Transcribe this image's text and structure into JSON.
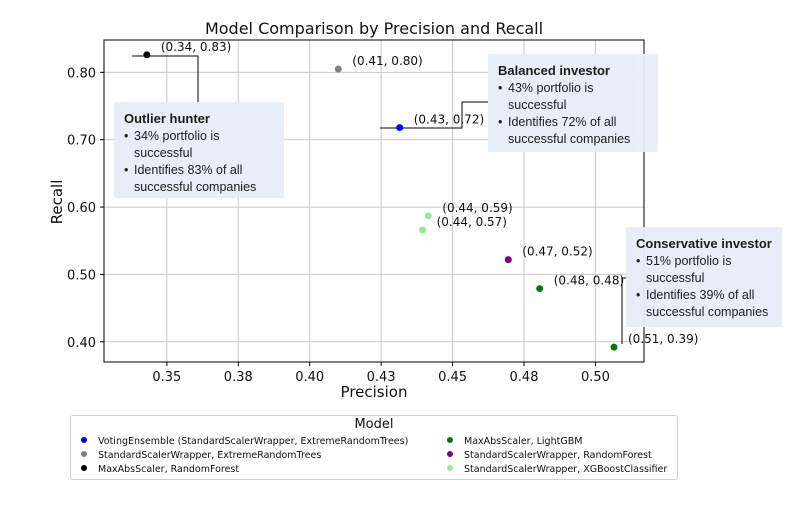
{
  "chart_data": {
    "type": "scatter",
    "title": "Model Comparison by Precision and Recall",
    "xlabel": "Precision",
    "ylabel": "Recall",
    "xlim": [
      0.328,
      0.517
    ],
    "ylim": [
      0.37,
      0.848
    ],
    "x_ticks": [
      0.35,
      0.375,
      0.4,
      0.425,
      0.45,
      0.475,
      0.5
    ],
    "x_tick_labels": [
      "0.35",
      "0.38",
      "0.40",
      "0.43",
      "0.45",
      "0.48",
      "0.50"
    ],
    "y_ticks": [
      0.4,
      0.5,
      0.6,
      0.7,
      0.8
    ],
    "y_tick_labels": [
      "0.40",
      "0.50",
      "0.60",
      "0.70",
      "0.80"
    ],
    "grid": true,
    "points": [
      {
        "x": 0.343,
        "y": 0.826,
        "label": "(0.34, 0.83)",
        "color": "#000000"
      },
      {
        "x": 0.41,
        "y": 0.805,
        "label": "(0.41, 0.80)",
        "color": "#808080"
      },
      {
        "x": 0.4315,
        "y": 0.718,
        "label": "(0.43, 0.72)",
        "color": "#0000ff"
      },
      {
        "x": 0.4415,
        "y": 0.587,
        "label": "(0.44, 0.59)",
        "color": "#90ee90"
      },
      {
        "x": 0.4395,
        "y": 0.566,
        "label": "(0.44, 0.57)",
        "color": "#90ee90"
      },
      {
        "x": 0.4695,
        "y": 0.522,
        "label": "(0.47, 0.52)",
        "color": "#800080"
      },
      {
        "x": 0.4805,
        "y": 0.479,
        "label": "(0.48, 0.48)",
        "color": "#008000"
      },
      {
        "x": 0.5065,
        "y": 0.392,
        "label": "(0.51, 0.39)",
        "color": "#008000"
      }
    ],
    "legend": {
      "title": "Model",
      "entries": [
        {
          "label": "VotingEnsemble  (StandardScalerWrapper, ExtremeRandomTrees)",
          "color": "#0000ff"
        },
        {
          "label": "StandardScalerWrapper, ExtremeRandomTrees",
          "color": "#808080"
        },
        {
          "label": "MaxAbsScaler, RandomForest",
          "color": "#000000"
        },
        {
          "label": "MaxAbsScaler, LightGBM",
          "color": "#008000"
        },
        {
          "label": "StandardScalerWrapper, RandomForest",
          "color": "#800080"
        },
        {
          "label": "StandardScalerWrapper, XGBoostClassifier",
          "color": "#90ee90"
        }
      ]
    }
  },
  "callouts": {
    "outlier": {
      "title": "Outlier hunter",
      "bullet1": "34% portfolio is successful",
      "bullet2": "Identifies 83% of all successful companies"
    },
    "balanced": {
      "title": "Balanced investor",
      "bullet1": "43% portfolio is successful",
      "bullet2": "Identifies 72% of all successful  companies"
    },
    "conservative": {
      "title": "Conservative investor",
      "bullet1": "51% portfolio  is successful",
      "bullet2": "Identifies 39% of all successful  companies"
    }
  }
}
